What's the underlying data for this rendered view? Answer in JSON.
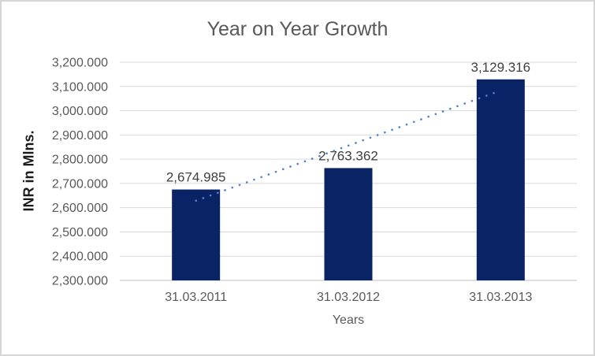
{
  "chart": {
    "title": "Year on Year Growth",
    "y_axis_title": "INR in Mlns.",
    "x_axis_title": "Years"
  },
  "chart_data": {
    "type": "bar",
    "title": "Year on Year Growth",
    "xlabel": "Years",
    "ylabel": "INR in Mlns.",
    "categories": [
      "31.03.2011",
      "31.03.2012",
      "31.03.2013"
    ],
    "values": [
      2674.985,
      2763.362,
      3129.316
    ],
    "value_labels": [
      "2,674.985",
      "2,763.362",
      "3,129.316"
    ],
    "ylim": [
      2300,
      3200
    ],
    "y_tick_step": 100,
    "y_tick_labels": [
      "2,300.000",
      "2,400.000",
      "2,500.000",
      "2,600.000",
      "2,700.000",
      "2,800.000",
      "2,900.000",
      "3,000.000",
      "3,100.000",
      "3,200.000"
    ],
    "grid": true,
    "legend_position": "none",
    "trendline": {
      "style": "dotted",
      "start_value": 2628.7,
      "end_value": 3083.1
    },
    "colors": {
      "bar": "#0a2364",
      "trendline": "#4f82c8",
      "gridline": "#d9d9d9",
      "axis_line": "#bfbfbf",
      "title_text": "#595959",
      "tick_text": "#595959",
      "data_label_text": "#404040",
      "axis_title_text": "#1a1a1a",
      "frame_border": "#d6d6d6",
      "background": "#ffffff"
    }
  }
}
